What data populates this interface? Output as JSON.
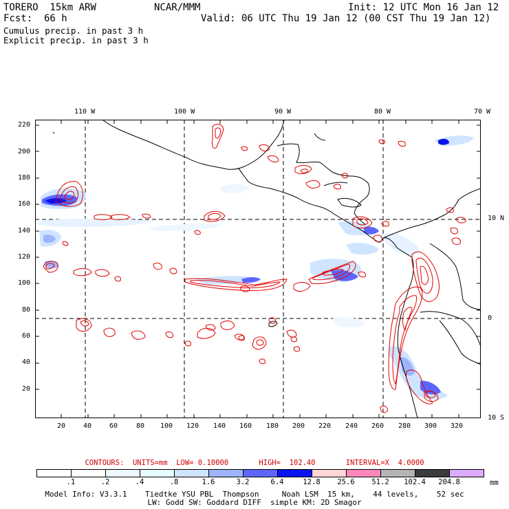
{
  "header": {
    "model": "TORERO  15km ARW",
    "center": "NCAR/MMM",
    "init": "Init: 12 UTC Mon 16 Jan 12",
    "fcst_label": "Fcst:",
    "fcst_value": "66 h",
    "valid": "Valid: 06 UTC Thu 19 Jan 12 (00 CST Thu 19 Jan 12)"
  },
  "fields": {
    "cumulus": "Cumulus precip. in past 3 h",
    "explicit": "Explicit precip. in past 3 h",
    "cumulus_color": "#0000cc",
    "explicit_color": "#e00000"
  },
  "top_axis": [
    "110 W",
    "100 W",
    "90 W",
    "80 W",
    "70 W"
  ],
  "right_axis": [
    "10 N",
    "0",
    "10 S"
  ],
  "left_axis": [
    "220",
    "200",
    "180",
    "160",
    "140",
    "120",
    "100",
    "80",
    "60",
    "40",
    "20"
  ],
  "bottom_axis": [
    "20",
    "40",
    "60",
    "80",
    "100",
    "120",
    "140",
    "160",
    "180",
    "200",
    "220",
    "240",
    "260",
    "280",
    "300",
    "320"
  ],
  "contours": {
    "text": "CONTOURS:  UNITS=mm  LOW= 0.10000       HIGH=  102.40       INTERVAL=X  4.0000"
  },
  "colorbar": {
    "unit": "mm",
    "labels": [
      ".1",
      ".2",
      ".4",
      ".8",
      "1.6",
      "3.2",
      "6.4",
      "12.8",
      "25.6",
      "51.2",
      "102.4",
      "204.8"
    ],
    "colors": [
      "#ffffff",
      "#ffffff",
      "#eef6ff",
      "#e6faff",
      "#cfe4ff",
      "#9fb4ff",
      "#5c66ff",
      "#0a14ee",
      "#ffd6d6",
      "#ff88bb",
      "#b4b4b4",
      "#3c3c3c",
      "#dcaaff"
    ]
  },
  "footer": {
    "line1": "Model Info: V3.3.1    Tiedtke YSU PBL  Thompson     Noah LSM  15 km,    44 levels,    52 sec",
    "line2": "LW: Godd SW: Goddard DIFF  simple KM: 2D Smagor"
  }
}
